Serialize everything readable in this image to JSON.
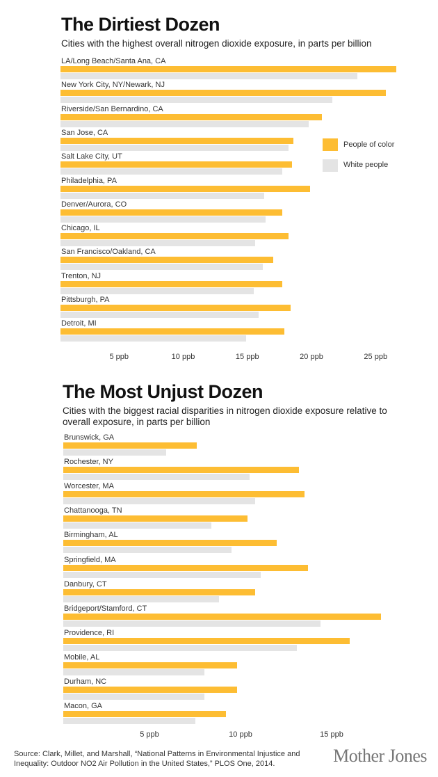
{
  "colors": {
    "poc": "#FDBD33",
    "white": "#E4E4E4"
  },
  "chart_data": [
    {
      "type": "bar",
      "title": "The Dirtiest Dozen",
      "subtitle": "Cities with the highest overall nitrogen dioxide exposure, in parts per billion",
      "unit": "ppb",
      "xlim": [
        0,
        27
      ],
      "ticks": [
        {
          "v": 5,
          "label": "5 ppb"
        },
        {
          "v": 10,
          "label": "10 ppb"
        },
        {
          "v": 15,
          "label": "15 ppb"
        },
        {
          "v": 20,
          "label": "20 ppb"
        },
        {
          "v": 25,
          "label": "25 ppb"
        }
      ],
      "legend": [
        "People of color",
        "White people"
      ],
      "legend_position": "right",
      "categories": [
        "LA/Long Beach/Santa Ana, CA",
        "New York City, NY/Newark, NJ",
        "Riverside/San Bernardino, CA",
        "San Jose, CA",
        "Salt Lake City, UT",
        "Philadelphia, PA",
        "Denver/Aurora, CO",
        "Chicago, IL",
        "San Francisco/Oakland, CA",
        "Trenton, NJ",
        "Pittsburgh, PA",
        "Detroit, MI"
      ],
      "series": [
        {
          "name": "People of color",
          "values": [
            26.6,
            25.8,
            20.8,
            18.6,
            18.5,
            19.9,
            17.7,
            18.2,
            17.0,
            17.7,
            18.4,
            17.9
          ]
        },
        {
          "name": "White people",
          "values": [
            23.6,
            21.6,
            19.8,
            18.2,
            17.7,
            16.3,
            16.4,
            15.6,
            16.2,
            15.5,
            15.9,
            14.9
          ]
        }
      ]
    },
    {
      "type": "bar",
      "title": "The Most Unjust Dozen",
      "subtitle": "Cities with the biggest racial disparities in nitrogen dioxide exposure relative to overall exposure, in parts per billion",
      "unit": "ppb",
      "xlim": [
        0,
        19
      ],
      "ticks": [
        {
          "v": 5,
          "label": "5 ppb"
        },
        {
          "v": 10,
          "label": "10 ppb"
        },
        {
          "v": 15,
          "label": "15 ppb"
        }
      ],
      "categories": [
        "Brunswick, GA",
        "Rochester, NY",
        "Worcester, MA",
        "Chattanooga, TN",
        "Birmingham, AL",
        "Springfield, MA",
        "Danbury, CT",
        "Bridgeport/Stamford, CT",
        "Providence, RI",
        "Mobile, AL",
        "Durham, NC",
        "Macon, GA"
      ],
      "series": [
        {
          "name": "People of color",
          "values": [
            7.6,
            13.2,
            13.5,
            10.4,
            12.0,
            13.7,
            10.8,
            17.7,
            16.0,
            9.8,
            9.8,
            9.2
          ]
        },
        {
          "name": "White people",
          "values": [
            5.9,
            10.5,
            10.8,
            8.4,
            9.5,
            11.1,
            8.8,
            14.4,
            13.1,
            8.0,
            8.0,
            7.5
          ]
        }
      ]
    }
  ],
  "source": "Source: Clark, Millet, and Marshall, “National Patterns in Environmental Injustice and Inequality: Outdoor NO2 Air Pollution in the United States,” PLOS One, 2014.",
  "logo": "Mother Jones"
}
